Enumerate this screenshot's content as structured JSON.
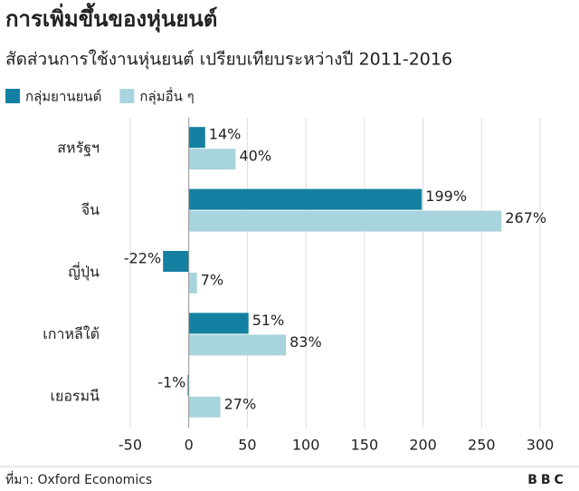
{
  "chart_data": {
    "type": "bar",
    "orientation": "horizontal",
    "title": "การเพิ่มขึ้นของหุ่นยนต์",
    "subtitle": "สัดส่วนการใช้งานหุ่นยนต์ เปรียบเทียบระหว่างปี 2011-2016",
    "categories": [
      "สหรัฐฯ",
      "จีน",
      "ญี่ปุ่น",
      "เกาหลีใต้",
      "เยอรมนี"
    ],
    "series": [
      {
        "name": "กลุ่มยานยนต์",
        "color": "#1380a1",
        "values": [
          14,
          199,
          -22,
          51,
          -1
        ],
        "value_labels": [
          "14%",
          "199%",
          "-22%",
          "51%",
          "-1%"
        ]
      },
      {
        "name": "กลุ่มอื่น ๆ",
        "color": "#a8d4dd",
        "values": [
          40,
          267,
          7,
          83,
          27
        ],
        "value_labels": [
          "40%",
          "267%",
          "7%",
          "83%",
          "27%"
        ]
      }
    ],
    "xlim": [
      -60,
      310
    ],
    "xticks": [
      -50,
      0,
      50,
      100,
      150,
      200,
      250,
      300
    ],
    "grid": true,
    "legend": "top-left",
    "source": "ที่มา: Oxford Economics",
    "logo": "BBC"
  }
}
